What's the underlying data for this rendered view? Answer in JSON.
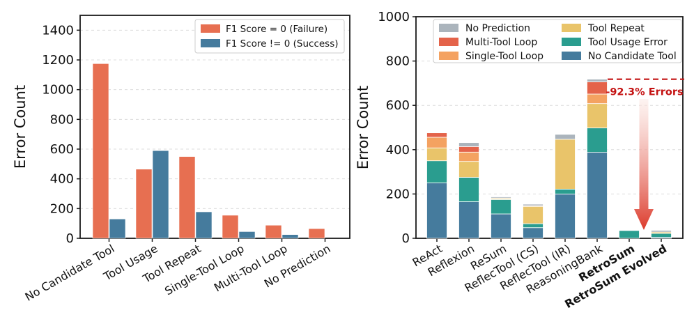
{
  "figure": {
    "background": "#FFFFFF"
  },
  "colors": {
    "failure": "#E76F51",
    "success": "#457B9D",
    "no_prediction": "#ABB4BC",
    "multi_tool_loop": "#E4634A",
    "single_tool_loop": "#F4A261",
    "tool_repeat": "#E9C46A",
    "tool_usage_error": "#2A9D8F",
    "no_candidate_tool": "#457B9D",
    "annotation_red": "#C41212",
    "arrow_light": "#FCEAE6",
    "arrow_dark": "#DC3B2C",
    "grid": "#DCDCDC",
    "spine": "#1A1A1A",
    "legend_border": "#CCCCCC",
    "text": "#111111"
  },
  "chart_data": [
    {
      "type": "bar",
      "title": "",
      "xlabel": "",
      "ylabel": "Error Count",
      "ylim": [
        0,
        1500
      ],
      "yticks": [
        0,
        200,
        400,
        600,
        800,
        1000,
        1200,
        1400
      ],
      "grid": "horizontal-dashed",
      "legend_position": "upper right",
      "categories": [
        "No Candidate Tool",
        "Tool Usage",
        "Tool Repeat",
        "Single-Tool Loop",
        "Multi-Tool Loop",
        "No Prediction"
      ],
      "series": [
        {
          "name": "F1 Score = 0 (Failure)",
          "color_key": "failure",
          "values": [
            1175,
            465,
            550,
            155,
            88,
            65
          ]
        },
        {
          "name": "F1 Score != 0 (Success)",
          "color_key": "success",
          "values": [
            130,
            590,
            178,
            45,
            25,
            0
          ]
        }
      ]
    },
    {
      "type": "stacked-bar",
      "title": "",
      "xlabel": "",
      "ylabel": "Error Count",
      "ylim": [
        0,
        1000
      ],
      "yticks": [
        0,
        200,
        400,
        600,
        800,
        1000
      ],
      "grid": "horizontal-dashed",
      "legend_position": "upper center, 2 columns",
      "categories": [
        "ReAct",
        "Reflexion",
        "ReSum",
        "ReflecTool (CS)",
        "ReflecTool (IR)",
        "ReasoningBank",
        "RetroSum",
        "RetroSum Evolved"
      ],
      "bold_categories": [
        "RetroSum",
        "RetroSum Evolved"
      ],
      "stack_order": "bottom to top",
      "series": [
        {
          "name": "No Candidate Tool",
          "color_key": "no_candidate_tool",
          "values": [
            250,
            165,
            110,
            48,
            200,
            388,
            0,
            4
          ]
        },
        {
          "name": "Tool Usage Error",
          "color_key": "tool_usage_error",
          "values": [
            100,
            110,
            65,
            18,
            22,
            110,
            35,
            18
          ]
        },
        {
          "name": "Tool Repeat",
          "color_key": "tool_repeat",
          "values": [
            58,
            72,
            5,
            78,
            225,
            110,
            0,
            6
          ]
        },
        {
          "name": "Single-Tool Loop",
          "color_key": "single_tool_loop",
          "values": [
            48,
            42,
            2,
            3,
            0,
            43,
            0,
            0
          ]
        },
        {
          "name": "Multi-Tool Loop",
          "color_key": "multi_tool_loop",
          "values": [
            20,
            25,
            0,
            0,
            0,
            55,
            0,
            0
          ]
        },
        {
          "name": "No Prediction",
          "color_key": "no_prediction",
          "values": [
            0,
            18,
            5,
            7,
            22,
            12,
            0,
            8
          ]
        }
      ],
      "totals": [
        476,
        432,
        187,
        154,
        469,
        718,
        35,
        36
      ],
      "legend_columns": [
        [
          "No Prediction",
          "Multi-Tool Loop",
          "Single-Tool Loop"
        ],
        [
          "Tool Repeat",
          "Tool Usage Error",
          "No Candidate Tool"
        ]
      ],
      "annotation": {
        "text": "-92.3% Errors",
        "line_y_value": 718,
        "arrow_direction": "down"
      }
    }
  ]
}
